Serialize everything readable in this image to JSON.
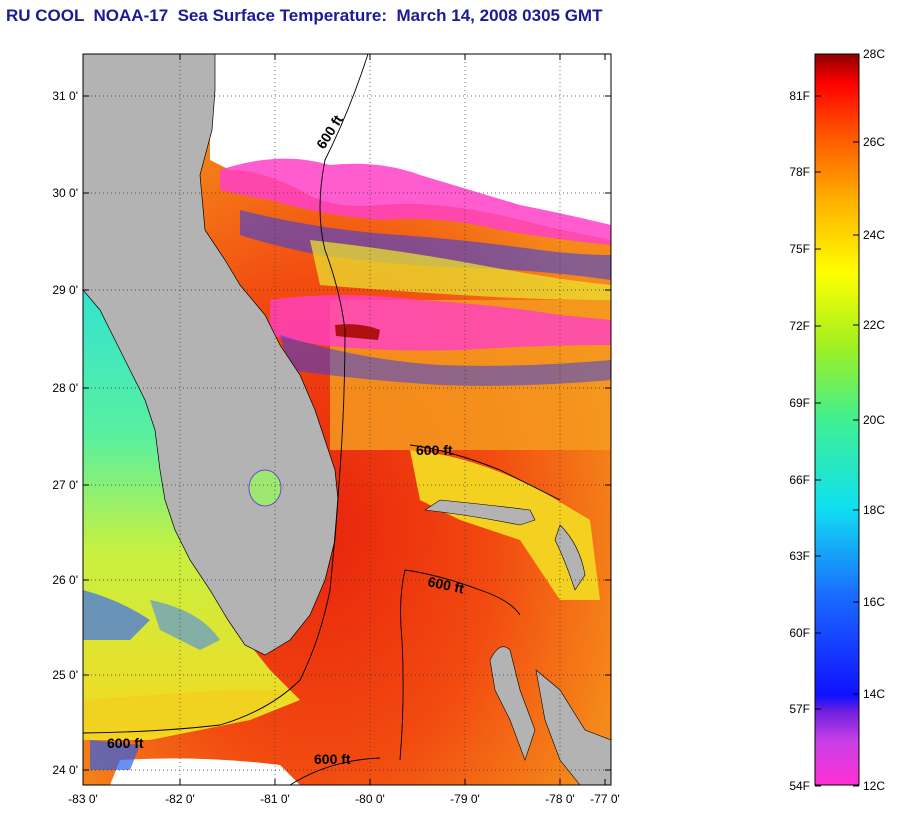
{
  "title": "RU COOL  NOAA-17  Sea Surface Temperature:  March 14, 2008 0305 GMT",
  "map": {
    "lat_labels": [
      "31 0'",
      "30 0'",
      "29 0'",
      "28 0'",
      "27 0'",
      "26 0'",
      "25 0'",
      "24 0'"
    ],
    "lon_labels": [
      "-83 0'",
      "-82 0'",
      "-81 0'",
      "-80 0'",
      "-79 0'",
      "-78 0'",
      "-77 0'"
    ],
    "contour_label": "600 ft"
  },
  "colorbar": {
    "fahrenheit": [
      "81F",
      "78F",
      "75F",
      "72F",
      "69F",
      "66F",
      "63F",
      "60F",
      "57F",
      "54F"
    ],
    "celsius": [
      "28C",
      "26C",
      "24C",
      "22C",
      "20C",
      "18C",
      "16C",
      "14C",
      "12C"
    ]
  }
}
